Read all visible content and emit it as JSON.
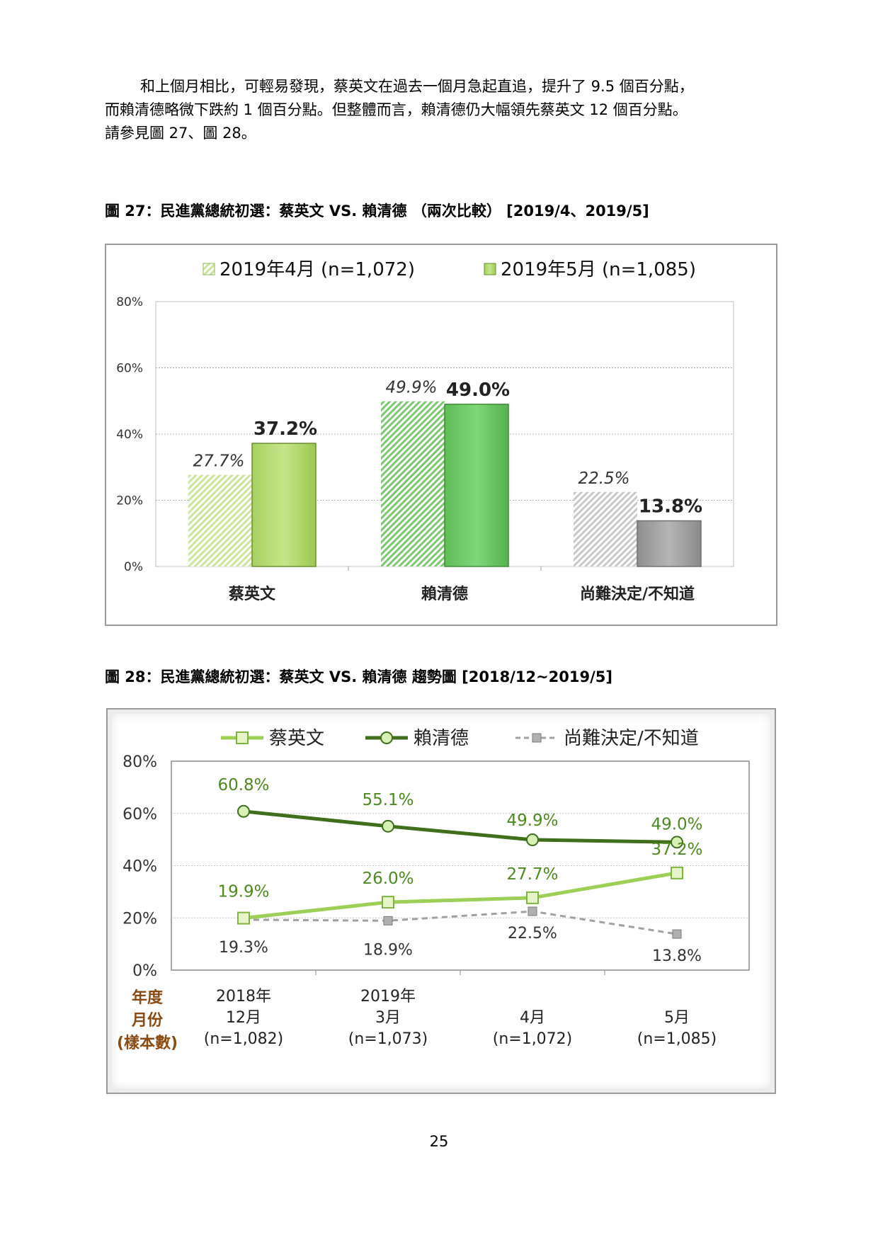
{
  "paragraph": {
    "line1": "和上個月相比，可輕易發現，蔡英文在過去一個月急起直追，提升了 9.5 個百分點，",
    "line2": "而賴清德略微下跌約 1 個百分點。但整體而言，賴清德仍大幅領先蔡英文 12 個百分點。",
    "line3": "請參見圖 27、圖 28。"
  },
  "figure27": {
    "caption": "圖 27：民進黨總統初選：蔡英文  VS.  賴清德  （兩次比較）  [2019/4、2019/5]"
  },
  "figure28": {
    "caption": "圖 28：民進黨總統初選：蔡英文  VS.  賴清德    趨勢圖  [2018/12~2019/5]",
    "side_label": [
      "年度",
      "月份",
      "(樣本數)"
    ]
  },
  "page_number": "25",
  "colors": {
    "tsai_apr": "#d8ee9c",
    "tsai_may": "#bde07a",
    "lai_apr": "#8fd28a",
    "lai_may": "#72cc6c",
    "other_apr": "#d2d2d2",
    "other_may": "#a6a6a6",
    "line_tsai": "#9ccf55",
    "line_lai": "#3f6f1c",
    "line_other": "#a0a0a0",
    "label_green": "#4c8a1e",
    "side_brown": "#8b4a12"
  },
  "chart_data": [
    {
      "type": "bar",
      "title": "",
      "categories": [
        "蔡英文",
        "賴清德",
        "尚難決定/不知道"
      ],
      "series": [
        {
          "name": "2019年4月 (n=1,072)",
          "values": [
            27.7,
            49.9,
            22.5
          ],
          "labels": [
            "27.7%",
            "49.9%",
            "22.5%"
          ]
        },
        {
          "name": "2019年5月 (n=1,085)",
          "values": [
            37.2,
            49.0,
            13.8
          ],
          "labels": [
            "37.2%",
            "49.0%",
            "13.8%"
          ]
        }
      ],
      "yticks": [
        "0%",
        "20%",
        "40%",
        "60%",
        "80%"
      ],
      "ylim": [
        0,
        80
      ],
      "grid": true,
      "legend": "top"
    },
    {
      "type": "line",
      "title": "",
      "categories": [
        [
          "2018年",
          "12月",
          "(n=1,082)"
        ],
        [
          "2019年",
          "3月",
          "(n=1,073)"
        ],
        [
          "",
          "4月",
          "(n=1,072)"
        ],
        [
          "",
          "5月",
          "(n=1,085)"
        ]
      ],
      "series": [
        {
          "name": "蔡英文",
          "values": [
            19.9,
            26.0,
            27.7,
            37.2
          ],
          "labels": [
            "19.9%",
            "26.0%",
            "27.7%",
            "37.2%"
          ]
        },
        {
          "name": "賴清德",
          "values": [
            60.8,
            55.1,
            49.9,
            49.0
          ],
          "labels": [
            "60.8%",
            "55.1%",
            "49.9%",
            "49.0%"
          ]
        },
        {
          "name": "尚難決定/不知道",
          "values": [
            19.3,
            18.9,
            22.5,
            13.8
          ],
          "labels": [
            "19.3%",
            "18.9%",
            "22.5%",
            "13.8%"
          ]
        }
      ],
      "yticks": [
        "0%",
        "20%",
        "40%",
        "60%",
        "80%"
      ],
      "ylim": [
        0,
        80
      ],
      "grid": true,
      "legend": "top"
    }
  ]
}
